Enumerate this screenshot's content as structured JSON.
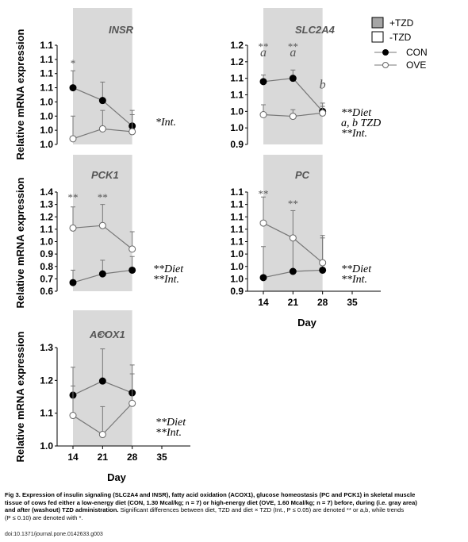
{
  "ylabel": "Relative mRNA expression",
  "xlabel": "Day",
  "legend": {
    "tzd_on": "+TZD",
    "tzd_off": "-TZD",
    "con": "CON",
    "ove": "OVE"
  },
  "colors": {
    "shade": "#d9d9d9",
    "con": "#000000",
    "ove": "#ffffff",
    "line": "#777777"
  },
  "caption": {
    "p1": "Fig 3. Expression of insulin signaling (SLC2A4 and INSR), fatty acid oxidation (ACOX1), glucose homeostasis (PC and PCK1) in skeletal muscle",
    "p2": "tissue of cows fed either a low-energy diet (CON, 1.30 Mcal/kg; n = 7) or high-energy diet (OVE, 1.60 Mcal/kg; n = 7) before, during (i.e. gray area)",
    "p3": "and after (washout) TZD administration.",
    "p4": " Significant differences between diet, TZD and diet × TZD (Int., P ≤ 0.05) are denoted ** or a,b, while trends",
    "p5": "(P ≤ 0.10) are denoted with *."
  },
  "doi": "doi:10.1371/journal.pone.0142633.g003",
  "chart_data": [
    {
      "type": "line",
      "title": "INSR",
      "x": [
        14,
        21,
        28
      ],
      "xticks": [
        "14",
        "21",
        "28",
        "35"
      ],
      "yticks": [
        "1.0",
        "1.0",
        "1.0",
        "1.0",
        "1.1",
        "1.1",
        "1.1",
        "1.1"
      ],
      "ylim": [
        0,
        7
      ],
      "shaded_days": [
        14,
        28
      ],
      "series": [
        {
          "name": "CON",
          "values": [
            4.0,
            3.1,
            1.3
          ],
          "errors": [
            1.2,
            1.3,
            0.8
          ]
        },
        {
          "name": "OVE",
          "values": [
            0.4,
            1.1,
            0.9
          ],
          "errors": [
            1.6,
            1.3,
            1.5
          ]
        }
      ],
      "annotations": [
        {
          "text": "*",
          "x": 14,
          "y": 5.5
        }
      ],
      "side_notes": [
        "*Int."
      ]
    },
    {
      "type": "line",
      "title": "SLC2A4",
      "x": [
        14,
        21,
        28
      ],
      "xticks": [
        "14",
        "21",
        "28",
        "35"
      ],
      "yticks": [
        "0.9",
        "1.0",
        "1.0",
        "1.1",
        "1.1",
        "1.2",
        "1.2"
      ],
      "ylim": [
        0.9,
        1.2
      ],
      "shaded_days": [
        14,
        28
      ],
      "series": [
        {
          "name": "CON",
          "values": [
            1.09,
            1.1,
            1.0
          ],
          "errors": [
            0.02,
            0.025,
            0.025
          ]
        },
        {
          "name": "OVE",
          "values": [
            0.99,
            0.985,
            0.995
          ],
          "errors": [
            0.03,
            0.02,
            0.02
          ]
        }
      ],
      "annotations": [
        {
          "text": "**",
          "x": 14,
          "y": 1.186
        },
        {
          "text": "a",
          "x": 14,
          "y": 1.166
        },
        {
          "text": "**",
          "x": 21,
          "y": 1.186
        },
        {
          "text": "a",
          "x": 21,
          "y": 1.166
        },
        {
          "text": "b",
          "x": 28,
          "y": 1.069
        }
      ],
      "side_notes": [
        "**Diet",
        "a, b TZD",
        "**Int."
      ]
    },
    {
      "type": "line",
      "title": "PCK1",
      "x": [
        14,
        21,
        28
      ],
      "xticks": [
        "14",
        "21",
        "28",
        "35"
      ],
      "yticks": [
        "0.6",
        "0.7",
        "0.8",
        "0.9",
        "1.0",
        "1.1",
        "1.2",
        "1.3",
        "1.4"
      ],
      "ylim": [
        0.6,
        1.4
      ],
      "shaded_days": [
        14,
        28
      ],
      "series": [
        {
          "name": "CON",
          "values": [
            0.67,
            0.74,
            0.77
          ],
          "errors": [
            0.1,
            0.11,
            0.11
          ]
        },
        {
          "name": "OVE",
          "values": [
            1.11,
            1.13,
            0.94
          ],
          "errors": [
            0.17,
            0.17,
            0.14
          ]
        }
      ],
      "annotations": [
        {
          "text": "**",
          "x": 14,
          "y": 1.33
        },
        {
          "text": "**",
          "x": 21,
          "y": 1.33
        }
      ],
      "side_notes": [
        "**Diet",
        "**Int."
      ]
    },
    {
      "type": "line",
      "title": "PC",
      "x": [
        14,
        21,
        28
      ],
      "xticks": [
        "14",
        "21",
        "28",
        "35"
      ],
      "yticks": [
        "0.9",
        "1.0",
        "1.0",
        "1.0",
        "1.1",
        "1.1",
        "1.1",
        "1.1",
        "1.1"
      ],
      "ylim": [
        0,
        8
      ],
      "shaded_days": [
        14,
        28
      ],
      "series": [
        {
          "name": "CON",
          "values": [
            1.1,
            1.6,
            1.7
          ],
          "errors": [
            2.5,
            2.6,
            2.6
          ]
        },
        {
          "name": "OVE",
          "values": [
            5.5,
            4.3,
            2.3
          ],
          "errors": [
            2.1,
            2.2,
            2.2
          ]
        }
      ],
      "annotations": [
        {
          "text": "**",
          "x": 14,
          "y": 7.6
        },
        {
          "text": "**",
          "x": 21,
          "y": 6.8
        }
      ],
      "side_notes": [
        "**Diet",
        "**Int."
      ]
    },
    {
      "type": "line",
      "title": "ACOX1",
      "x": [
        14,
        21,
        28
      ],
      "xticks": [
        "14",
        "21",
        "28",
        "35"
      ],
      "yticks": [
        "1.0",
        "1.1",
        "1.2",
        "1.3"
      ],
      "ylim": [
        1.0,
        1.3
      ],
      "shaded_days": [
        14,
        28
      ],
      "series": [
        {
          "name": "CON",
          "values": [
            1.155,
            1.198,
            1.162
          ],
          "errors": [
            0.085,
            0.098,
            0.085
          ]
        },
        {
          "name": "OVE",
          "values": [
            1.093,
            1.035,
            1.13
          ],
          "errors": [
            0.09,
            0.085,
            0.09
          ]
        }
      ],
      "annotations": [
        {
          "text": "**",
          "x": 21,
          "y": 1.325
        }
      ],
      "side_notes": [
        "**Diet",
        "**Int."
      ]
    }
  ]
}
